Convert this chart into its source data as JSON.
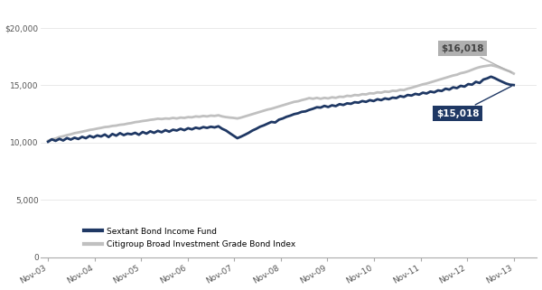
{
  "navy_color": "#1F3864",
  "gray_color": "#C0C0C0",
  "x_labels": [
    "Nov-03",
    "Nov-04",
    "Nov-05",
    "Nov-06",
    "Nov-07",
    "Nov-08",
    "Nov-09",
    "Nov-10",
    "Nov-11",
    "Nov-12",
    "Nov-13"
  ],
  "ylim": [
    0,
    22000
  ],
  "yticks": [
    0,
    5000,
    10000,
    15000,
    20000
  ],
  "ytick_labels": [
    "0",
    "5,000",
    "10,000",
    "15,000",
    "$20,000"
  ],
  "legend_label_fund": "Sextant Bond Income Fund",
  "legend_label_index": "Citigroup Broad Investment Grade Bond Index",
  "annotation_fund": "$15,018",
  "annotation_index": "$16,018",
  "annotation_fund_bg": "#1F3864",
  "annotation_index_bg": "#B0B0B0",
  "annotation_fund_text_color": "#FFFFFF",
  "annotation_index_text_color": "#444444",
  "background_color": "#FFFFFF",
  "navy_linewidth": 2.0,
  "gray_linewidth": 2.0,
  "fund_data": [
    10070,
    10280,
    10150,
    10320,
    10180,
    10390,
    10260,
    10420,
    10310,
    10500,
    10380,
    10580,
    10450,
    10620,
    10530,
    10700,
    10480,
    10750,
    10600,
    10820,
    10650,
    10780,
    10720,
    10850,
    10680,
    10920,
    10780,
    10980,
    10850,
    11020,
    10900,
    11080,
    10950,
    11120,
    11050,
    11200,
    11080,
    11250,
    11150,
    11300,
    11220,
    11350,
    11280,
    11380,
    11320,
    11420,
    11200,
    11050,
    10820,
    10600,
    10380,
    10520,
    10680,
    10850,
    11050,
    11200,
    11380,
    11500,
    11650,
    11800,
    11750,
    12000,
    12100,
    12250,
    12350,
    12480,
    12550,
    12680,
    12720,
    12850,
    12950,
    13080,
    13050,
    13200,
    13100,
    13250,
    13180,
    13350,
    13280,
    13420,
    13380,
    13520,
    13480,
    13620,
    13550,
    13700,
    13620,
    13780,
    13700,
    13850,
    13780,
    13920,
    13880,
    14050,
    13980,
    14150,
    14100,
    14250,
    14180,
    14350,
    14280,
    14450,
    14380,
    14550,
    14500,
    14700,
    14620,
    14820,
    14750,
    14950,
    14880,
    15100,
    15050,
    15300,
    15200,
    15500,
    15600,
    15750,
    15620,
    15450,
    15300,
    15150,
    15050,
    15018
  ],
  "index_data": [
    10150,
    10280,
    10350,
    10480,
    10550,
    10650,
    10720,
    10820,
    10880,
    10950,
    11020,
    11100,
    11150,
    11220,
    11280,
    11350,
    11380,
    11450,
    11480,
    11550,
    11580,
    11650,
    11700,
    11780,
    11820,
    11880,
    11920,
    11980,
    12020,
    12080,
    12050,
    12100,
    12080,
    12150,
    12100,
    12180,
    12150,
    12220,
    12200,
    12280,
    12250,
    12320,
    12280,
    12350,
    12320,
    12380,
    12280,
    12220,
    12180,
    12150,
    12100,
    12180,
    12280,
    12380,
    12480,
    12580,
    12680,
    12780,
    12880,
    12950,
    13050,
    13150,
    13250,
    13350,
    13450,
    13550,
    13600,
    13700,
    13780,
    13880,
    13820,
    13900,
    13820,
    13900,
    13850,
    13950,
    13900,
    14000,
    13980,
    14080,
    14050,
    14150,
    14120,
    14220,
    14200,
    14300,
    14280,
    14380,
    14350,
    14450,
    14420,
    14520,
    14500,
    14600,
    14580,
    14700,
    14780,
    14880,
    14980,
    15080,
    15150,
    15250,
    15350,
    15450,
    15550,
    15650,
    15750,
    15850,
    15920,
    16050,
    16120,
    16220,
    16350,
    16480,
    16580,
    16650,
    16700,
    16750,
    16680,
    16580,
    16450,
    16320,
    16200,
    16018
  ]
}
